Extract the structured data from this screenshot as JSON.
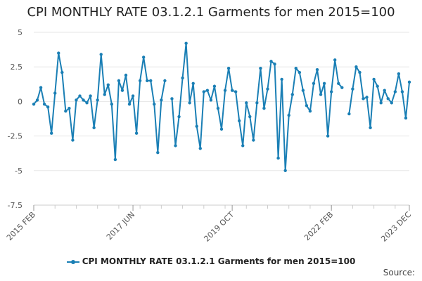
{
  "chart_data": {
    "type": "line",
    "title": "CPI MONTHLY RATE 03.1.2.1 Garments for men 2015=100",
    "xlabel": "",
    "ylabel": "",
    "ylim": [
      -7.5,
      5
    ],
    "yticks": [
      5,
      2.5,
      0,
      -2.5,
      -5,
      -7.5
    ],
    "ytick_labels": [
      "5",
      "2.5",
      "0",
      "-2.5",
      "-5",
      "-7.5"
    ],
    "grid": true,
    "legend": "bottom",
    "xtick_labels": [
      {
        "label": "2015 FEB",
        "date": "2015-02"
      },
      {
        "label": "2017 JUN",
        "date": "2017-06"
      },
      {
        "label": "2019 OCT",
        "date": "2019-10"
      },
      {
        "label": "2022 FEB",
        "date": "2022-02"
      },
      {
        "label": "2023 DEC",
        "date": "2023-12"
      }
    ],
    "series": [
      {
        "name": "CPI MONTHLY RATE 03.1.2.1 Garments for men 2015=100",
        "color": "#1a7fb5",
        "start": "2015-02",
        "values": [
          -0.2,
          0.1,
          1.0,
          -0.2,
          -0.4,
          -2.3,
          0.6,
          3.5,
          2.1,
          -0.7,
          -0.5,
          -2.8,
          0.1,
          0.4,
          0.1,
          -0.1,
          0.4,
          -1.9,
          0.1,
          3.4,
          0.5,
          1.2,
          -0.2,
          -4.2,
          1.5,
          0.8,
          1.9,
          -0.2,
          0.4,
          -2.3,
          1.5,
          3.2,
          1.5,
          1.5,
          -0.2,
          -3.7,
          0.1,
          1.5,
          null,
          0.2,
          -3.2,
          -1.1,
          1.7,
          4.2,
          -0.1,
          1.3,
          -1.8,
          -3.4,
          0.7,
          0.8,
          0.1,
          1.1,
          -0.5,
          -2.0,
          0.8,
          2.4,
          0.8,
          0.7,
          -1.4,
          -3.2,
          -0.1,
          -1.1,
          -2.8,
          -0.1,
          2.4,
          -0.5,
          0.9,
          2.9,
          2.7,
          -4.1,
          1.6,
          -5.0,
          -1.0,
          0.5,
          2.4,
          2.1,
          0.8,
          -0.3,
          -0.7,
          1.3,
          2.3,
          0.5,
          1.3,
          -2.5,
          0.7,
          3.0,
          1.3,
          1.0,
          null,
          -0.9,
          0.9,
          2.5,
          2.1,
          0.2,
          0.3,
          -1.9,
          1.6,
          1.1,
          -0.1,
          0.8,
          0.2,
          -0.1,
          0.7,
          2.0,
          0.7,
          -1.2,
          1.4
        ]
      }
    ]
  },
  "source_label": "Source:"
}
